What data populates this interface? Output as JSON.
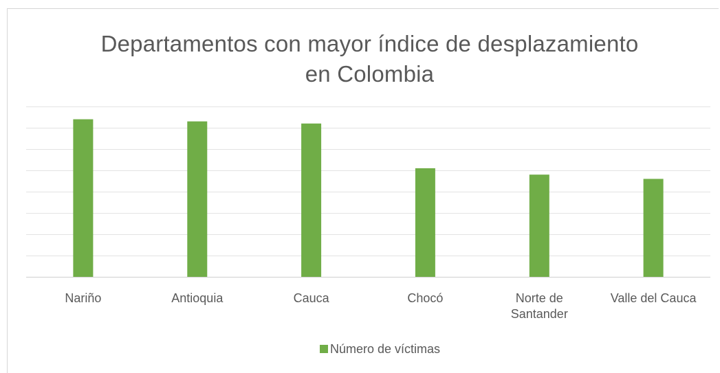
{
  "chart_data": {
    "type": "bar",
    "title_lines": [
      "Departamentos con mayor índice de desplazamiento",
      "en Colombia"
    ],
    "categories": [
      [
        "Nariño"
      ],
      [
        "Antioquia"
      ],
      [
        "Cauca"
      ],
      [
        "Chocó"
      ],
      [
        "Norte de",
        "Santander"
      ],
      [
        "Valle del Cauca"
      ]
    ],
    "series": [
      {
        "name": "Número de víctimas",
        "values": [
          7.4,
          7.3,
          7.2,
          5.1,
          4.8,
          4.6
        ],
        "color": "#70ad47"
      }
    ],
    "ylim": [
      0,
      8
    ],
    "grid": true,
    "y_tick_labels_shown": false,
    "legend_position": "bottom"
  }
}
